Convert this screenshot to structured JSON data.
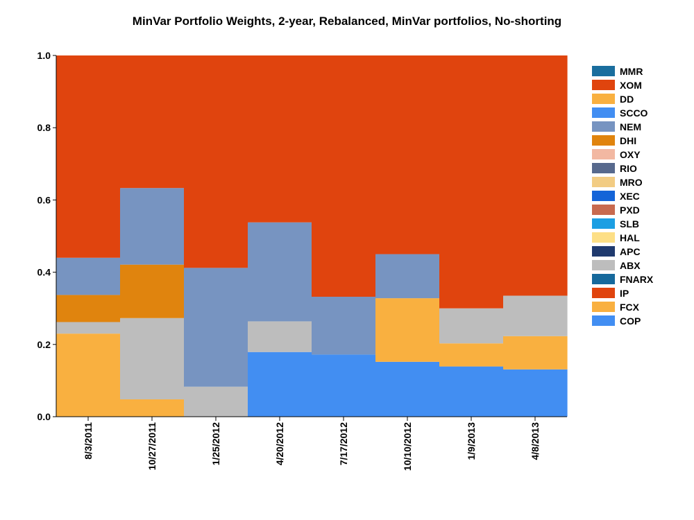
{
  "chart_data": {
    "type": "area",
    "title": "MinVar Portfolio Weights, 2-year, Rebalanced, MinVar portfolios, No-shorting",
    "xlabel": "",
    "ylabel": "",
    "ylim": [
      0,
      1
    ],
    "y_ticks": [
      "0.0",
      "0.2",
      "0.4",
      "0.6",
      "0.8",
      "1.0"
    ],
    "categories": [
      "8/3/2011",
      "10/27/2011",
      "1/25/2012",
      "4/20/2012",
      "7/17/2012",
      "10/10/2012",
      "1/9/2013",
      "4/8/2013"
    ],
    "grid": false,
    "legend_position": "right",
    "series": [
      {
        "name": "MMR",
        "color": "#1a6e9e",
        "values": [
          0,
          0,
          0,
          0,
          0,
          0,
          0,
          0
        ]
      },
      {
        "name": "XOM",
        "color": "#e0440e",
        "values": [
          0.56,
          0.367,
          0.588,
          0.462,
          0.668,
          0.55,
          0.7,
          0.665
        ]
      },
      {
        "name": "DD",
        "color": "#f9b040",
        "values": [
          0,
          0,
          0,
          0,
          0,
          0,
          0,
          0
        ]
      },
      {
        "name": "SCCO",
        "color": "#428ef2",
        "values": [
          0,
          0,
          0,
          0,
          0,
          0,
          0,
          0
        ]
      },
      {
        "name": "NEM",
        "color": "#7794c1",
        "values": [
          0.103,
          0.212,
          0.329,
          0.274,
          0.16,
          0.122,
          0,
          0
        ]
      },
      {
        "name": "DHI",
        "color": "#e0840e",
        "values": [
          0.075,
          0.148,
          0,
          0,
          0,
          0,
          0,
          0
        ]
      },
      {
        "name": "OXY",
        "color": "#f2b8a2",
        "values": [
          0,
          0,
          0,
          0,
          0,
          0,
          0,
          0
        ]
      },
      {
        "name": "RIO",
        "color": "#57698d",
        "values": [
          0,
          0,
          0,
          0,
          0,
          0,
          0,
          0
        ]
      },
      {
        "name": "MRO",
        "color": "#f2cc83",
        "values": [
          0,
          0,
          0,
          0,
          0,
          0,
          0,
          0
        ]
      },
      {
        "name": "XEC",
        "color": "#1464d8",
        "values": [
          0,
          0,
          0,
          0,
          0,
          0,
          0,
          0
        ]
      },
      {
        "name": "PXD",
        "color": "#c86a4f",
        "values": [
          0,
          0,
          0,
          0,
          0,
          0,
          0,
          0
        ]
      },
      {
        "name": "SLB",
        "color": "#1c9fe3",
        "values": [
          0,
          0,
          0,
          0,
          0,
          0,
          0,
          0
        ]
      },
      {
        "name": "HAL",
        "color": "#fddf86",
        "values": [
          0,
          0,
          0,
          0,
          0,
          0,
          0,
          0
        ]
      },
      {
        "name": "APC",
        "color": "#1f3a6e",
        "values": [
          0,
          0,
          0,
          0,
          0,
          0,
          0,
          0
        ]
      },
      {
        "name": "ABX",
        "color": "#bdbdbd",
        "values": [
          0.032,
          0.225,
          0.083,
          0.085,
          0,
          0,
          0.097,
          0.112
        ]
      },
      {
        "name": "FNARX",
        "color": "#16699c",
        "values": [
          0,
          0,
          0,
          0,
          0,
          0,
          0,
          0
        ]
      },
      {
        "name": "IP",
        "color": "#e0440e",
        "values": [
          0,
          0,
          0,
          0,
          0,
          0,
          0,
          0
        ]
      },
      {
        "name": "FCX",
        "color": "#f9b040",
        "values": [
          0.23,
          0.048,
          0,
          0,
          0,
          0.176,
          0.064,
          0.092
        ]
      },
      {
        "name": "COP",
        "color": "#428ef2",
        "values": [
          0,
          0,
          0,
          0.179,
          0.172,
          0.152,
          0.139,
          0.131
        ]
      }
    ]
  }
}
